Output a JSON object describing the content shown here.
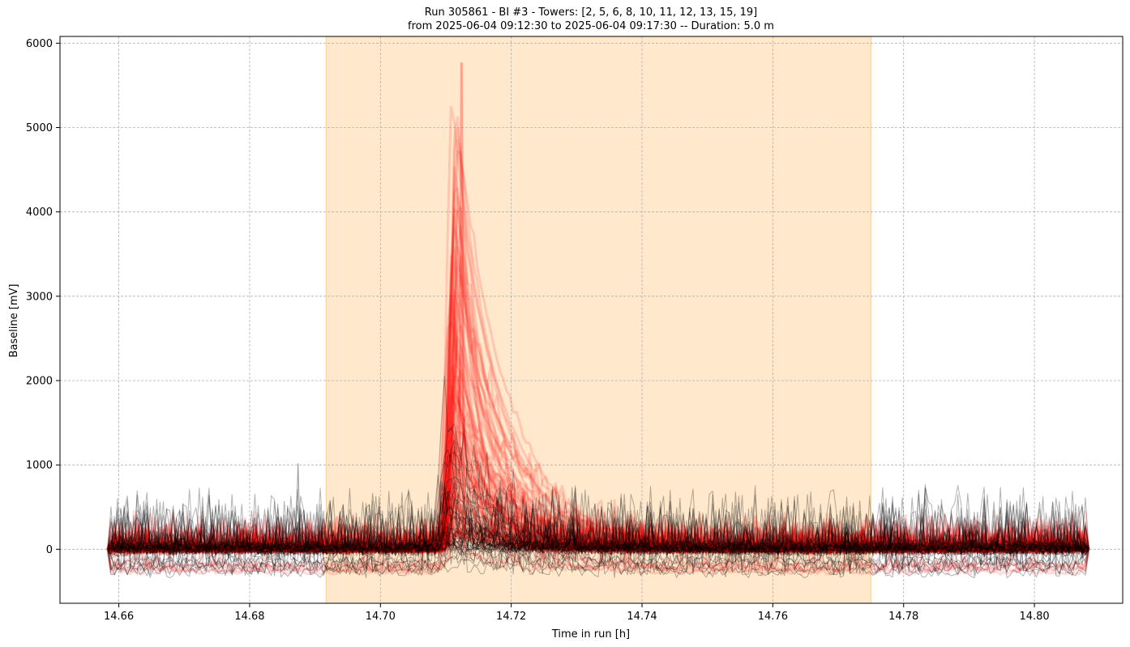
{
  "chart_data": {
    "type": "line",
    "title_line1": "Run 305861  -  BI #3  -  Towers: [2, 5, 6, 8, 10, 11, 12, 13, 15, 19]",
    "title_line2": "from  2025-06-04 09:12:30  to  2025-06-04 09:17:30 -- Duration: 5.0 m",
    "xlabel": "Time in run [h]",
    "ylabel": "Baseline [mV]",
    "xlim": [
      14.651,
      14.8135
    ],
    "ylim": [
      -640,
      6080
    ],
    "xticks": [
      14.66,
      14.68,
      14.7,
      14.72,
      14.74,
      14.76,
      14.78,
      14.8
    ],
    "xtick_labels": [
      "14.66",
      "14.68",
      "14.70",
      "14.72",
      "14.74",
      "14.76",
      "14.78",
      "14.80"
    ],
    "yticks": [
      0,
      1000,
      2000,
      3000,
      4000,
      5000,
      6000
    ],
    "ytick_labels": [
      "0",
      "1000",
      "2000",
      "3000",
      "4000",
      "5000",
      "6000"
    ],
    "grid": true,
    "highlight_span": {
      "x0": 14.6917,
      "x1": 14.775,
      "color": "#ffe8cc",
      "edge_color": "#f5cf9b"
    },
    "series_groups": [
      {
        "style": "thick red, semi-transparent",
        "color": "#ff0000",
        "count": 90,
        "x_start": 14.6583,
        "x_end": 14.8083,
        "peak_x": 14.7115,
        "peak_max": 5770,
        "peak_min": 150,
        "baseline_noise": 420
      },
      {
        "style": "thin black, semi-transparent",
        "color": "#000000",
        "count": 45,
        "x_start": 14.6583,
        "x_end": 14.8083,
        "peak_x": 14.7105,
        "peak_max": 1800,
        "peak_min": 20,
        "baseline_noise": 780
      }
    ],
    "notable_points": [
      {
        "x": 14.6874,
        "y": 1020
      },
      {
        "x": 14.7124,
        "y": 5770
      }
    ]
  }
}
